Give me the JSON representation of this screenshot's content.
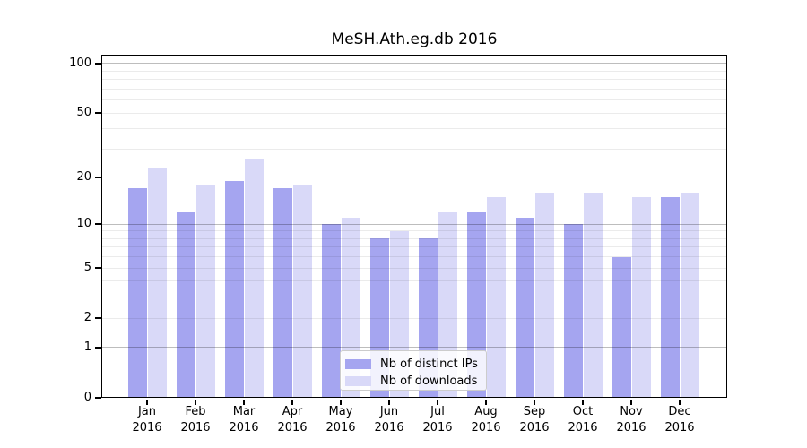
{
  "title": "MeSH.Ath.eg.db 2016",
  "chart_data": {
    "type": "bar",
    "title": "MeSH.Ath.eg.db 2016",
    "y_scale": "log10(1+y)",
    "ylim": [
      0,
      113
    ],
    "y_ticks": [
      0,
      1,
      2,
      5,
      10,
      20,
      50,
      100
    ],
    "minor_gridlines": [
      3,
      4,
      6,
      7,
      8,
      9,
      30,
      40,
      60,
      70,
      80,
      90
    ],
    "emphasized_gridlines": [
      1,
      10,
      100
    ],
    "grid": true,
    "legend_position": "lower center",
    "categories": [
      "Jan",
      "Feb",
      "Mar",
      "Apr",
      "May",
      "Jun",
      "Jul",
      "Aug",
      "Sep",
      "Oct",
      "Nov",
      "Dec"
    ],
    "x_sublabel": "2016",
    "series": [
      {
        "name": "Nb of distinct IPs",
        "color": "#a5a5f0",
        "values": [
          17,
          12,
          19,
          17,
          10,
          8,
          8,
          12,
          11,
          10,
          6,
          15
        ]
      },
      {
        "name": "Nb of downloads",
        "color": "#d9d9f8",
        "values": [
          23,
          18,
          26,
          18,
          11,
          9,
          12,
          15,
          16,
          16,
          15,
          16
        ]
      }
    ]
  }
}
